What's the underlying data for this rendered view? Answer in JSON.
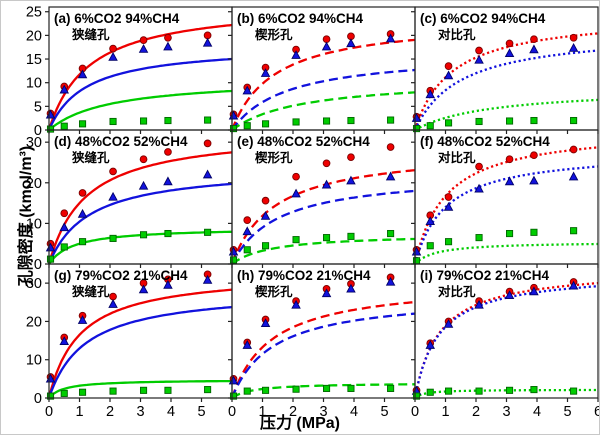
{
  "figure": {
    "xlabel": "压力 (MPa)",
    "ylabel": "孔隙密度 (kmol/m³)"
  },
  "chart_data": {
    "type": "line",
    "title": "",
    "xlabel": "压力 (MPa)",
    "ylabel": "孔隙密度 (kmol/m³)",
    "x_range": [
      0,
      6
    ],
    "xticks": [
      0,
      1,
      2,
      3,
      4,
      5,
      6
    ],
    "rows": [
      {
        "ylim": 26,
        "yticks": [
          0,
          5,
          10,
          15,
          20,
          25
        ]
      },
      {
        "ylim": 33,
        "yticks": [
          0,
          10,
          20,
          30
        ]
      },
      {
        "ylim": 35,
        "yticks": [
          0,
          10,
          20,
          30
        ]
      }
    ],
    "line_style_by_col": [
      "solid",
      "dashed",
      "dotted"
    ],
    "colors": {
      "red": "#ee0000",
      "blue": "#1212dd",
      "green": "#00cc00"
    },
    "marker_edge_colors": {
      "red": "#7a0000",
      "blue": "#000066",
      "green": "#006600"
    },
    "x_scatter": [
      0.05,
      0.5,
      1.1,
      2.1,
      3.1,
      3.9,
      5.2
    ],
    "panels": [
      {
        "id": "a",
        "row": 0,
        "col": 0,
        "title": "(a) 6%CO2 94%CH4",
        "subtitle": "狭缝孔",
        "curves": [
          {
            "color": "red",
            "A": 27,
            "K": 1.3
          },
          {
            "color": "blue",
            "A": 18,
            "K": 1.2
          },
          {
            "color": "green",
            "A": 11,
            "K": 2.0
          }
        ],
        "scatter": [
          {
            "color": "red",
            "marker": "circle",
            "y": [
              3.5,
              9.2,
              13.0,
              17.2,
              19.0,
              19.5,
              20.0
            ]
          },
          {
            "color": "blue",
            "marker": "triangle",
            "y": [
              3.2,
              8.5,
              11.7,
              15.4,
              17.1,
              17.6,
              18.4
            ]
          },
          {
            "color": "green",
            "marker": "square",
            "y": [
              0.2,
              0.8,
              1.3,
              1.8,
              1.9,
              2.0,
              2.1
            ]
          }
        ]
      },
      {
        "id": "b",
        "row": 0,
        "col": 1,
        "title": "(b) 6%CO2 94%CH4",
        "subtitle": "楔形孔",
        "curves": [
          {
            "color": "red",
            "A": 23.5,
            "K": 1.4
          },
          {
            "color": "blue",
            "A": 16.5,
            "K": 1.8
          },
          {
            "color": "green",
            "A": 11,
            "K": 2.3
          }
        ],
        "scatter": [
          {
            "color": "red",
            "marker": "circle",
            "y": [
              3.3,
              9.0,
              13.2,
              17.0,
              19.2,
              19.8,
              20.3
            ]
          },
          {
            "color": "blue",
            "marker": "triangle",
            "y": [
              3.0,
              8.3,
              12.0,
              15.8,
              17.6,
              18.3,
              19.3
            ]
          },
          {
            "color": "green",
            "marker": "square",
            "y": [
              0.3,
              0.9,
              1.3,
              1.7,
              1.9,
              2.0,
              2.1
            ]
          }
        ]
      },
      {
        "id": "c",
        "row": 0,
        "col": 2,
        "title": "(c) 6%CO2 94%CH4",
        "subtitle": "对比孔",
        "curves": [
          {
            "color": "red",
            "A": 24.5,
            "K": 1.2
          },
          {
            "color": "blue",
            "A": 21,
            "K": 1.5
          },
          {
            "color": "green",
            "A": 9,
            "K": 2.5
          }
        ],
        "scatter": [
          {
            "color": "red",
            "marker": "circle",
            "y": [
              2.8,
              8.3,
              13.5,
              16.8,
              18.3,
              19.2,
              19.5
            ]
          },
          {
            "color": "blue",
            "marker": "triangle",
            "y": [
              2.5,
              7.5,
              11.5,
              14.8,
              16.2,
              17.0,
              17.3
            ]
          },
          {
            "color": "green",
            "marker": "square",
            "y": [
              0.3,
              0.9,
              1.5,
              1.8,
              1.9,
              2.0,
              2.0
            ]
          }
        ]
      },
      {
        "id": "d",
        "row": 1,
        "col": 0,
        "title": "(d) 48%CO2 52%CH4",
        "subtitle": "狭缝孔",
        "curves": [
          {
            "color": "red",
            "A": 33,
            "K": 1.2
          },
          {
            "color": "blue",
            "A": 24,
            "K": 1.3
          },
          {
            "color": "green",
            "A": 9,
            "K": 0.8
          }
        ],
        "scatter": [
          {
            "color": "red",
            "marker": "circle",
            "y": [
              5.0,
              12.5,
              17.5,
              22.8,
              25.8,
              27.6,
              29.7
            ]
          },
          {
            "color": "blue",
            "marker": "triangle",
            "y": [
              4.0,
              9.0,
              12.3,
              16.5,
              19.2,
              20.3,
              22.0
            ]
          },
          {
            "color": "green",
            "marker": "square",
            "y": [
              1.2,
              4.2,
              5.5,
              6.3,
              7.2,
              7.5,
              7.8
            ]
          }
        ]
      },
      {
        "id": "e",
        "row": 1,
        "col": 1,
        "title": "(e) 48%CO2 52%CH4",
        "subtitle": "楔形孔",
        "curves": [
          {
            "color": "red",
            "A": 28.5,
            "K": 1.4
          },
          {
            "color": "blue",
            "A": 22.5,
            "K": 1.5
          },
          {
            "color": "green",
            "A": 7.5,
            "K": 1.3
          }
        ],
        "scatter": [
          {
            "color": "red",
            "marker": "circle",
            "y": [
              3.5,
              10.8,
              15.6,
              21.5,
              24.8,
              26.3,
              28.8
            ]
          },
          {
            "color": "blue",
            "marker": "triangle",
            "y": [
              3.0,
              8.0,
              11.8,
              17.3,
              19.5,
              20.5,
              21.5
            ]
          },
          {
            "color": "green",
            "marker": "square",
            "y": [
              1.0,
              3.5,
              4.5,
              6.0,
              6.5,
              6.8,
              7.5
            ]
          }
        ]
      },
      {
        "id": "f",
        "row": 1,
        "col": 2,
        "title": "(f) 48%CO2 52%CH4",
        "subtitle": "对比孔",
        "curves": [
          {
            "color": "red",
            "A": 33.5,
            "K": 1.0
          },
          {
            "color": "blue",
            "A": 28,
            "K": 1.0
          },
          {
            "color": "green",
            "A": 5.5,
            "K": 0.7
          }
        ],
        "scatter": [
          {
            "color": "red",
            "marker": "circle",
            "y": [
              3.5,
              12.0,
              16.5,
              24.0,
              25.8,
              26.8,
              28.2
            ]
          },
          {
            "color": "blue",
            "marker": "triangle",
            "y": [
              3.0,
              10.5,
              14.0,
              18.5,
              20.3,
              20.5,
              21.5
            ]
          },
          {
            "color": "green",
            "marker": "square",
            "y": [
              0.8,
              4.5,
              5.5,
              6.5,
              7.5,
              7.8,
              8.2
            ]
          }
        ]
      },
      {
        "id": "g",
        "row": 2,
        "col": 0,
        "title": "(g) 79%CO2 21%CH4",
        "subtitle": "狭缝孔",
        "curves": [
          {
            "color": "red",
            "A": 33,
            "K": 1.0
          },
          {
            "color": "blue",
            "A": 28.5,
            "K": 1.2
          },
          {
            "color": "green",
            "A": 4.8,
            "K": 0.5
          }
        ],
        "scatter": [
          {
            "color": "red",
            "marker": "circle",
            "y": [
              5.5,
              15.8,
              21.5,
              26.5,
              30.0,
              31.0,
              32.3
            ]
          },
          {
            "color": "blue",
            "marker": "triangle",
            "y": [
              5.0,
              14.8,
              20.3,
              24.5,
              28.3,
              29.5,
              30.8
            ]
          },
          {
            "color": "green",
            "marker": "square",
            "y": [
              0.5,
              1.2,
              1.5,
              1.8,
              2.0,
              2.0,
              2.2
            ]
          }
        ]
      },
      {
        "id": "h",
        "row": 2,
        "col": 1,
        "title": "(h) 79%CO2 21%CH4",
        "subtitle": "楔形孔",
        "curves": [
          {
            "color": "red",
            "A": 30.5,
            "K": 1.3
          },
          {
            "color": "blue",
            "A": 27,
            "K": 1.35
          },
          {
            "color": "green",
            "A": 4,
            "K": 0.7
          }
        ],
        "scatter": [
          {
            "color": "red",
            "marker": "circle",
            "y": [
              5.0,
              14.5,
              20.5,
              25.3,
              28.5,
              29.8,
              31.5
            ]
          },
          {
            "color": "blue",
            "marker": "triangle",
            "y": [
              4.5,
              13.8,
              19.5,
              24.3,
              27.3,
              28.5,
              30.3
            ]
          },
          {
            "color": "green",
            "marker": "square",
            "y": [
              0.5,
              1.8,
              2.0,
              2.3,
              2.5,
              2.5,
              2.5
            ]
          }
        ]
      },
      {
        "id": "i",
        "row": 2,
        "col": 2,
        "title": "(i) 79%CO2 21%CH4",
        "subtitle": "对比孔",
        "curves": [
          {
            "color": "red",
            "A": 34,
            "K": 0.8
          },
          {
            "color": "blue",
            "A": 33,
            "K": 0.78
          },
          {
            "color": "green",
            "A": 2.2,
            "K": 0.3
          }
        ],
        "scatter": [
          {
            "color": "red",
            "marker": "circle",
            "y": [
              2.0,
              14.3,
              20.0,
              25.3,
              27.8,
              28.8,
              30.3
            ]
          },
          {
            "color": "blue",
            "marker": "triangle",
            "y": [
              1.8,
              13.8,
              19.3,
              24.3,
              26.8,
              27.8,
              29.3
            ]
          },
          {
            "color": "green",
            "marker": "square",
            "y": [
              0.5,
              1.5,
              1.8,
              1.8,
              2.0,
              2.2,
              1.8
            ]
          }
        ]
      }
    ]
  }
}
